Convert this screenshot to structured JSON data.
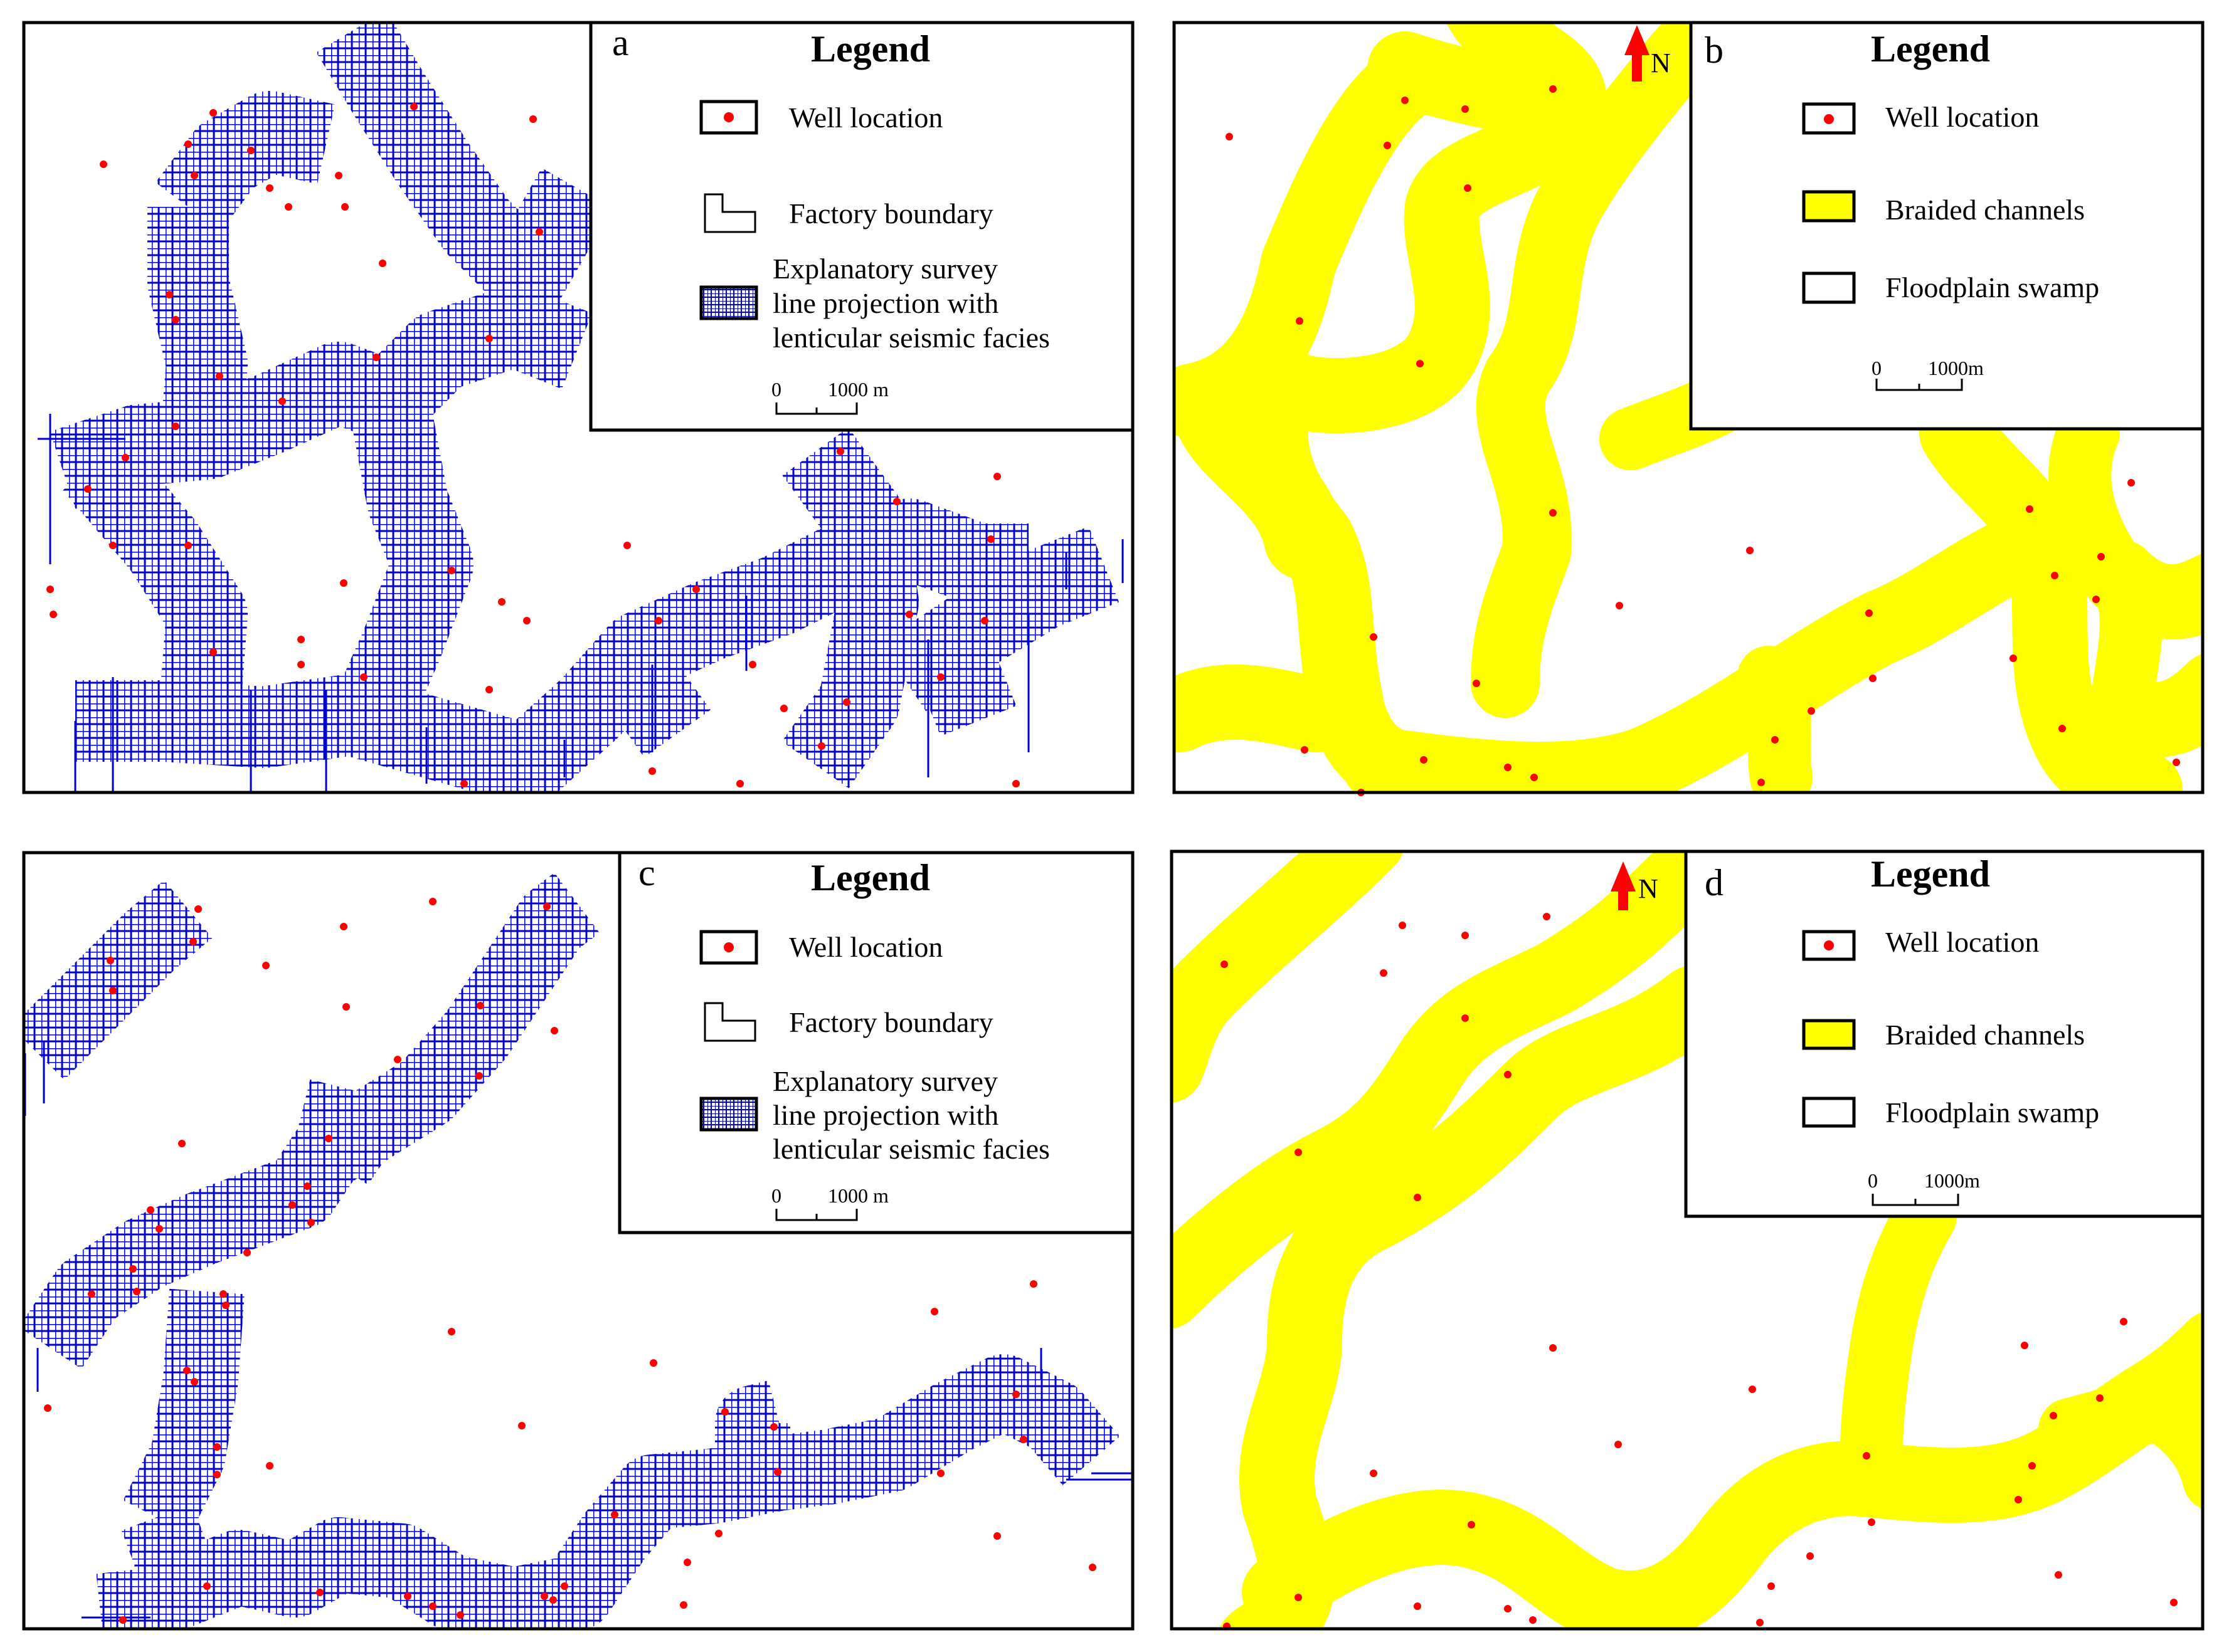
{
  "colors": {
    "channel": "#ffff00",
    "survey_lines": "#0000cc",
    "well": "#ff0000",
    "north_arrow": "#ff0000",
    "frame": "#000000"
  },
  "panels": {
    "a": {
      "letter": "a",
      "legend": {
        "title": "Legend",
        "items": [
          {
            "icon": "well-location-icon",
            "label": "Well location"
          },
          {
            "icon": "factory-boundary-icon",
            "label": "Factory boundary"
          },
          {
            "icon": "survey-line-grid-icon",
            "lines": [
              "Explanatory survey",
              "line projection with",
              "lenticular seismic facies"
            ]
          }
        ],
        "scale": {
          "zero": "0",
          "length": "1000 m"
        }
      }
    },
    "b": {
      "letter": "b",
      "north": "N",
      "legend": {
        "title": "Legend",
        "items": [
          {
            "icon": "well-location-icon",
            "label": "Well location"
          },
          {
            "icon": "braided-channel-swatch",
            "label": "Braided channels"
          },
          {
            "icon": "floodplain-swamp-swatch",
            "label": "Floodplain swamp"
          }
        ],
        "scale": {
          "zero": "0",
          "length": "1000m"
        }
      }
    },
    "c": {
      "letter": "c",
      "legend": {
        "title": "Legend",
        "items": [
          {
            "icon": "well-location-icon",
            "label": "Well location"
          },
          {
            "icon": "factory-boundary-icon",
            "label": "Factory boundary"
          },
          {
            "icon": "survey-line-grid-icon",
            "lines": [
              "Explanatory survey",
              "line projection with",
              "lenticular seismic facies"
            ]
          }
        ],
        "scale": {
          "zero": "0",
          "length": "1000 m"
        }
      }
    },
    "d": {
      "letter": "d",
      "north": "N",
      "legend": {
        "title": "Legend",
        "items": [
          {
            "icon": "well-location-icon",
            "label": "Well location"
          },
          {
            "icon": "braided-channel-swatch",
            "label": "Braided channels"
          },
          {
            "icon": "floodplain-swamp-swatch",
            "label": "Floodplain swamp"
          }
        ],
        "scale": {
          "zero": "0",
          "length": "1000m"
        }
      }
    }
  }
}
